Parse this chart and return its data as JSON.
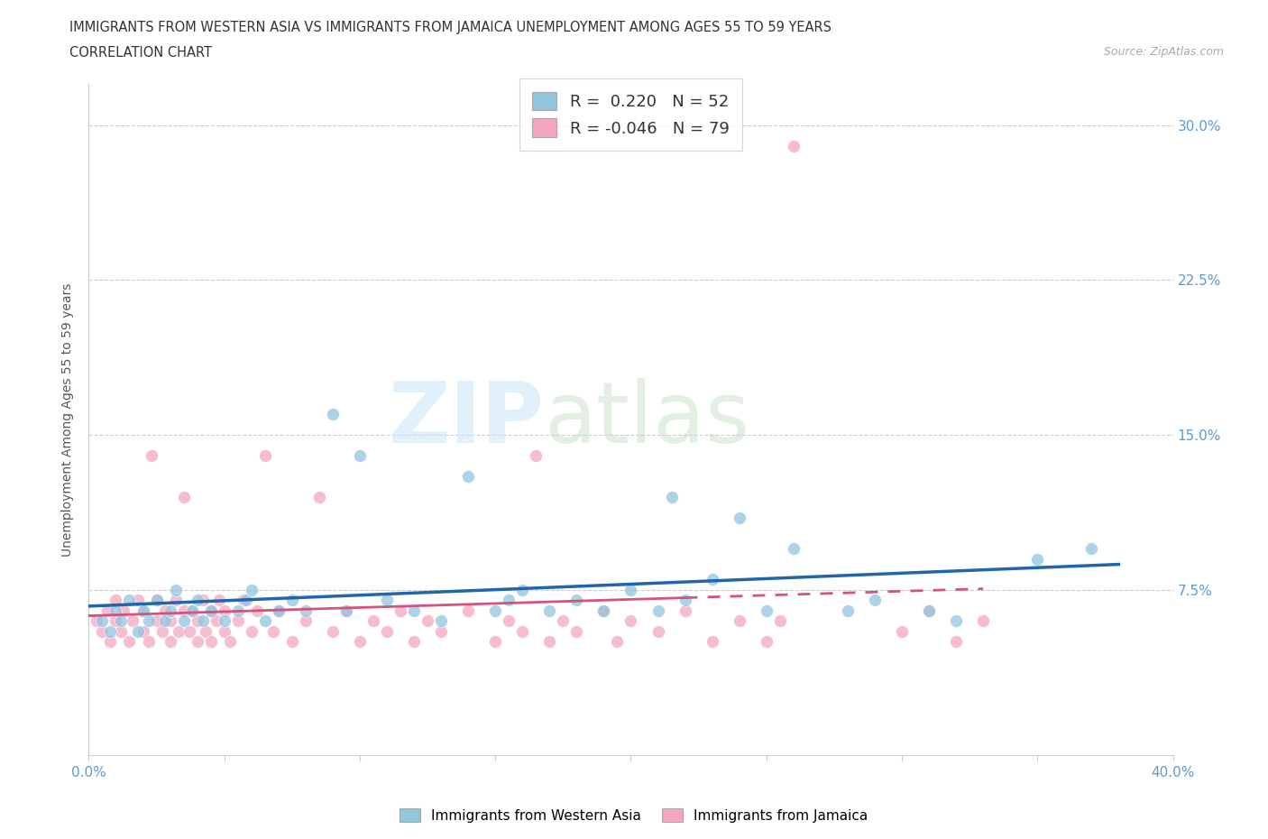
{
  "title_line1": "IMMIGRANTS FROM WESTERN ASIA VS IMMIGRANTS FROM JAMAICA UNEMPLOYMENT AMONG AGES 55 TO 59 YEARS",
  "title_line2": "CORRELATION CHART",
  "source_text": "Source: ZipAtlas.com",
  "ylabel": "Unemployment Among Ages 55 to 59 years",
  "xlim": [
    0.0,
    0.4
  ],
  "ylim": [
    -0.005,
    0.32
  ],
  "ytick_positions": [
    0.075,
    0.15,
    0.225,
    0.3
  ],
  "ytick_labels": [
    "7.5%",
    "15.0%",
    "22.5%",
    "30.0%"
  ],
  "blue_color": "#92c5de",
  "pink_color": "#f4a6c0",
  "blue_line_color": "#2166ac",
  "pink_line_color": "#d6517d",
  "r_blue": 0.22,
  "n_blue": 52,
  "r_pink": -0.046,
  "n_pink": 79,
  "watermark_zip": "ZIP",
  "watermark_atlas": "atlas",
  "legend_bottom_blue": "Immigrants from Western Asia",
  "legend_bottom_pink": "Immigrants from Jamaica",
  "blue_scatter_x": [
    0.005,
    0.008,
    0.01,
    0.012,
    0.015,
    0.018,
    0.02,
    0.022,
    0.025,
    0.028,
    0.03,
    0.032,
    0.035,
    0.038,
    0.04,
    0.042,
    0.045,
    0.05,
    0.055,
    0.058,
    0.06,
    0.065,
    0.07,
    0.075,
    0.08,
    0.09,
    0.095,
    0.1,
    0.11,
    0.12,
    0.13,
    0.14,
    0.15,
    0.155,
    0.16,
    0.17,
    0.18,
    0.19,
    0.2,
    0.21,
    0.215,
    0.22,
    0.23,
    0.24,
    0.25,
    0.26,
    0.28,
    0.29,
    0.31,
    0.32,
    0.35,
    0.37
  ],
  "blue_scatter_y": [
    0.06,
    0.055,
    0.065,
    0.06,
    0.07,
    0.055,
    0.065,
    0.06,
    0.07,
    0.06,
    0.065,
    0.075,
    0.06,
    0.065,
    0.07,
    0.06,
    0.065,
    0.06,
    0.065,
    0.07,
    0.075,
    0.06,
    0.065,
    0.07,
    0.065,
    0.16,
    0.065,
    0.14,
    0.07,
    0.065,
    0.06,
    0.13,
    0.065,
    0.07,
    0.075,
    0.065,
    0.07,
    0.065,
    0.075,
    0.065,
    0.12,
    0.07,
    0.08,
    0.11,
    0.065,
    0.095,
    0.065,
    0.07,
    0.065,
    0.06,
    0.09,
    0.095
  ],
  "pink_scatter_x": [
    0.003,
    0.005,
    0.007,
    0.008,
    0.01,
    0.01,
    0.012,
    0.013,
    0.015,
    0.016,
    0.018,
    0.02,
    0.02,
    0.022,
    0.023,
    0.025,
    0.025,
    0.027,
    0.028,
    0.03,
    0.03,
    0.032,
    0.033,
    0.035,
    0.035,
    0.037,
    0.038,
    0.04,
    0.04,
    0.042,
    0.043,
    0.045,
    0.045,
    0.047,
    0.048,
    0.05,
    0.05,
    0.052,
    0.055,
    0.057,
    0.06,
    0.062,
    0.065,
    0.068,
    0.07,
    0.075,
    0.08,
    0.085,
    0.09,
    0.095,
    0.1,
    0.105,
    0.11,
    0.115,
    0.12,
    0.125,
    0.13,
    0.14,
    0.15,
    0.155,
    0.16,
    0.165,
    0.17,
    0.175,
    0.18,
    0.19,
    0.195,
    0.2,
    0.21,
    0.22,
    0.23,
    0.24,
    0.25,
    0.255,
    0.26,
    0.3,
    0.31,
    0.32,
    0.33
  ],
  "pink_scatter_y": [
    0.06,
    0.055,
    0.065,
    0.05,
    0.06,
    0.07,
    0.055,
    0.065,
    0.05,
    0.06,
    0.07,
    0.055,
    0.065,
    0.05,
    0.14,
    0.06,
    0.07,
    0.055,
    0.065,
    0.05,
    0.06,
    0.07,
    0.055,
    0.065,
    0.12,
    0.055,
    0.065,
    0.05,
    0.06,
    0.07,
    0.055,
    0.065,
    0.05,
    0.06,
    0.07,
    0.055,
    0.065,
    0.05,
    0.06,
    0.07,
    0.055,
    0.065,
    0.14,
    0.055,
    0.065,
    0.05,
    0.06,
    0.12,
    0.055,
    0.065,
    0.05,
    0.06,
    0.055,
    0.065,
    0.05,
    0.06,
    0.055,
    0.065,
    0.05,
    0.06,
    0.055,
    0.14,
    0.05,
    0.06,
    0.055,
    0.065,
    0.05,
    0.06,
    0.055,
    0.065,
    0.05,
    0.06,
    0.05,
    0.06,
    0.29,
    0.055,
    0.065,
    0.05,
    0.06
  ]
}
